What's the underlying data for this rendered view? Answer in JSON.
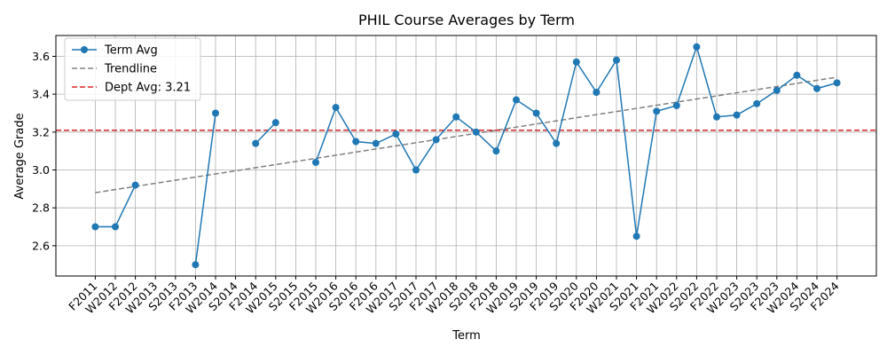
{
  "chart_data": {
    "type": "line",
    "title": "PHIL Course Averages by Term",
    "xlabel": "Term",
    "ylabel": "Average Grade",
    "categories": [
      "F2011",
      "W2012",
      "F2012",
      "W2013",
      "S2013",
      "F2013",
      "W2014",
      "S2014",
      "F2014",
      "W2015",
      "S2015",
      "F2015",
      "W2016",
      "S2016",
      "F2016",
      "W2017",
      "S2017",
      "F2017",
      "W2018",
      "S2018",
      "F2018",
      "W2019",
      "S2019",
      "F2019",
      "S2020",
      "F2020",
      "W2021",
      "S2021",
      "F2021",
      "W2022",
      "S2022",
      "F2022",
      "W2023",
      "S2023",
      "F2023",
      "W2024",
      "S2024",
      "F2024"
    ],
    "ylim": [
      2.44,
      3.71
    ],
    "yticks": [
      "2.6",
      "2.8",
      "3.0",
      "3.2",
      "3.4",
      "3.6"
    ],
    "grid": true,
    "legend_position": "top-left",
    "series": [
      {
        "name": "Term Avg",
        "color": "#1f77b4",
        "marker": "circle",
        "values": [
          2.7,
          2.7,
          2.92,
          null,
          null,
          2.5,
          3.3,
          null,
          3.14,
          3.25,
          null,
          3.04,
          3.33,
          3.15,
          3.14,
          3.19,
          3.0,
          3.16,
          3.28,
          3.2,
          3.1,
          3.37,
          3.3,
          3.14,
          3.57,
          3.41,
          3.58,
          2.65,
          3.31,
          3.34,
          3.65,
          3.28,
          3.29,
          3.35,
          3.42,
          3.5,
          3.43,
          3.46
        ]
      },
      {
        "name": "Trendline",
        "color": "#808080",
        "style": "dashed",
        "start": 2.88,
        "end": 3.49
      },
      {
        "name": "Dept Avg: 3.21",
        "color": "#d62728",
        "style": "dashed",
        "value": 3.21
      }
    ]
  }
}
